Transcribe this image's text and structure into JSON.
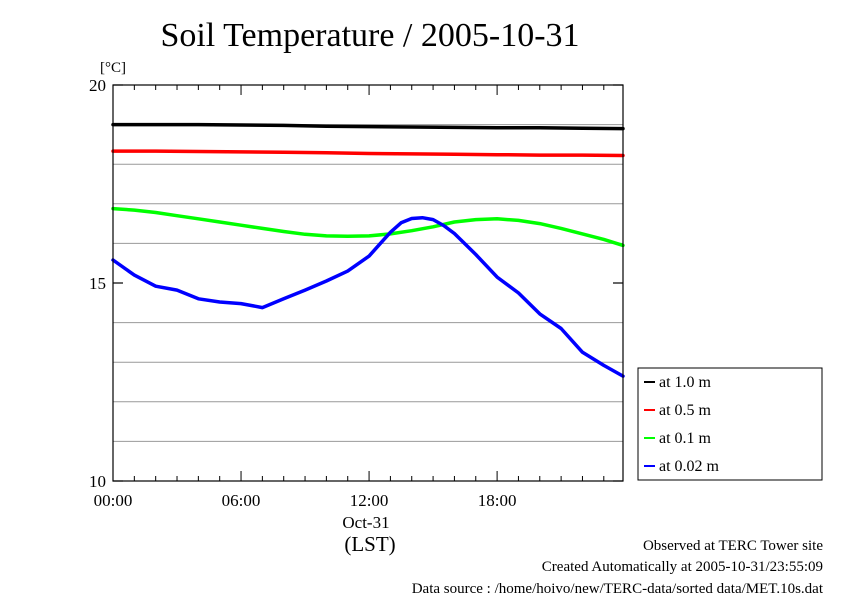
{
  "chart_data": {
    "type": "line",
    "title": "Soil Temperature / 2005-10-31",
    "ylabel": "[°C]",
    "ylim": [
      10,
      20
    ],
    "yticks": [
      10,
      15,
      20
    ],
    "ygrid": [
      11,
      12,
      13,
      14,
      16,
      17,
      18,
      19
    ],
    "xlim": [
      0,
      23.9
    ],
    "xticks": [
      {
        "value": 0,
        "label": "00:00"
      },
      {
        "value": 6,
        "label": "06:00"
      },
      {
        "value": 12,
        "label": "12:00"
      },
      {
        "value": 18,
        "label": "18:00"
      }
    ],
    "date_label": "Oct-31",
    "xlabel": "(LST)",
    "grid": true,
    "legend_position": "right",
    "series": [
      {
        "name": "at 1.0 m",
        "color": "#000000",
        "x": [
          0,
          2,
          4,
          6,
          8,
          10,
          12,
          14,
          16,
          18,
          20,
          22,
          23.9
        ],
        "y": [
          19.0,
          19.0,
          19.0,
          18.99,
          18.98,
          18.96,
          18.95,
          18.94,
          18.93,
          18.92,
          18.92,
          18.91,
          18.9
        ]
      },
      {
        "name": "at 0.5 m",
        "color": "#ff0000",
        "x": [
          0,
          2,
          4,
          6,
          8,
          10,
          12,
          14,
          16,
          18,
          20,
          22,
          23.9
        ],
        "y": [
          18.33,
          18.33,
          18.32,
          18.31,
          18.3,
          18.29,
          18.27,
          18.26,
          18.25,
          18.24,
          18.23,
          18.23,
          18.22
        ]
      },
      {
        "name": "at 0.1 m",
        "color": "#00ff00",
        "x": [
          0,
          1,
          2,
          3,
          4,
          5,
          6,
          7,
          8,
          9,
          10,
          11,
          12,
          13,
          14,
          15,
          16,
          17,
          18,
          19,
          20,
          21,
          22,
          23,
          23.9
        ],
        "y": [
          16.88,
          16.84,
          16.78,
          16.7,
          16.62,
          16.54,
          16.46,
          16.38,
          16.3,
          16.23,
          16.19,
          16.18,
          16.19,
          16.24,
          16.32,
          16.42,
          16.54,
          16.6,
          16.62,
          16.58,
          16.5,
          16.38,
          16.24,
          16.1,
          15.95
        ]
      },
      {
        "name": "at 0.02 m",
        "color": "#0000ff",
        "x": [
          0,
          1,
          2,
          3,
          4,
          5,
          6,
          7,
          8,
          9,
          10,
          11,
          12,
          12.5,
          13,
          13.5,
          14,
          14.5,
          15,
          15.5,
          16,
          17,
          18,
          19,
          20,
          21,
          22,
          23,
          23.9
        ],
        "y": [
          15.58,
          15.2,
          14.92,
          14.82,
          14.6,
          14.52,
          14.48,
          14.38,
          14.6,
          14.82,
          15.05,
          15.3,
          15.68,
          15.98,
          16.28,
          16.52,
          16.63,
          16.65,
          16.6,
          16.45,
          16.25,
          15.72,
          15.15,
          14.75,
          14.22,
          13.85,
          13.25,
          12.92,
          12.65
        ]
      }
    ]
  },
  "footer": {
    "line1": "Observed at TERC Tower site",
    "line2": "Created Automatically at 2005-10-31/23:55:09",
    "line3": "Data source : /home/hoivo/new/TERC-data/sorted  data/MET.10s.dat"
  }
}
